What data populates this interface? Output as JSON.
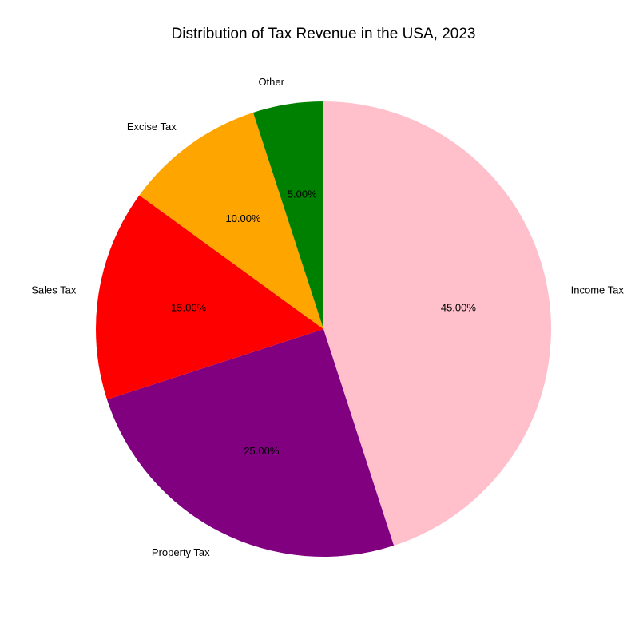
{
  "chart_data": {
    "type": "pie",
    "title": "Distribution of Tax Revenue in the USA, 2023",
    "start_angle_deg": 90,
    "direction": "clockwise",
    "slices": [
      {
        "label": "Income Tax",
        "value": 45,
        "pct_label": "45.00%",
        "color": "#ffc0cb"
      },
      {
        "label": "Property Tax",
        "value": 25,
        "pct_label": "25.00%",
        "color": "#800080"
      },
      {
        "label": "Sales Tax",
        "value": 15,
        "pct_label": "15.00%",
        "color": "#ff0000"
      },
      {
        "label": "Excise Tax",
        "value": 10,
        "pct_label": "10.00%",
        "color": "#ffa500"
      },
      {
        "label": "Other",
        "value": 5,
        "pct_label": "5.00%",
        "color": "#008000"
      }
    ]
  }
}
